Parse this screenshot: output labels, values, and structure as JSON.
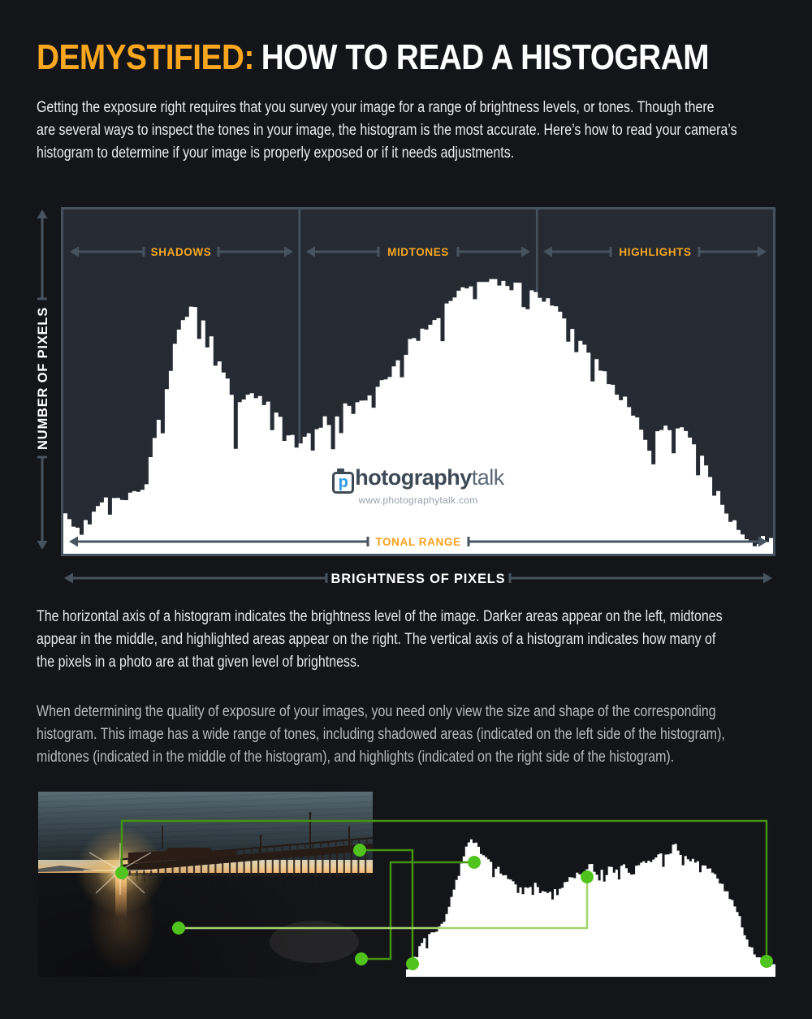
{
  "colors": {
    "page_bg": "#141518",
    "chart_bg": "#262b33",
    "slate": "#47545f",
    "accent_orange": "#f9a71f",
    "histogram_fill": "#ffffff",
    "link_green_dark": "#44940f",
    "link_green_light": "#a5d36b",
    "dot_green": "#50c41d"
  },
  "header": {
    "title_highlight": "DEMYSTIFIED:",
    "title_rest": "HOW TO READ A HISTOGRAM"
  },
  "intro": {
    "lines": [
      "Getting the exposure right requires that you survey your image for a range of brightness levels, or tones. Though there",
      "are several ways to inspect the tones in your image, the histogram is the most accurate. Here’s how to read your camera’s",
      "histogram to determine if your image is properly exposed or if it needs adjustments."
    ]
  },
  "diagram": {
    "y_axis": "NUMBER OF PIXELS",
    "x_axis": "BRIGHTNESS OF PIXELS",
    "tonal_range": "TONAL RANGE",
    "regions": [
      "SHADOWS",
      "MIDTONES",
      "HIGHLIGHTS"
    ],
    "watermark": {
      "p": "p",
      "brand_bold": "hotography",
      "brand_light": "talk",
      "url": "www.photographytalk.com"
    }
  },
  "paragraphs": {
    "axis": [
      "The horizontal axis of a histogram indicates the brightness level of the image. Darker areas appear on the left, midtones",
      "appear in the middle, and highlighted areas appear on the right. The vertical axis of a histogram indicates how many of",
      "the pixels in a photo are at that given level of brightness."
    ],
    "exposure": [
      "When determining the quality of exposure of your images, you need only view the size and shape of the corresponding",
      "histogram. This image has a wide range of tones, including shadowed areas (indicated on the left side of the histogram),",
      "midtones (indicated in the middle of the histogram), and highlights (indicated on the right side of the histogram)."
    ]
  },
  "chart_data": [
    {
      "id": "main-histogram",
      "type": "area",
      "title": "Conceptual camera histogram",
      "xlabel": "BRIGHTNESS OF PIXELS",
      "ylabel": "NUMBER OF PIXELS",
      "x_range": [
        0,
        1
      ],
      "y_range": [
        0,
        1
      ],
      "grid": false,
      "regions": [
        {
          "label": "SHADOWS",
          "span": [
            0,
            0.333
          ]
        },
        {
          "label": "MIDTONES",
          "span": [
            0.333,
            0.667
          ]
        },
        {
          "label": "HIGHLIGHTS",
          "span": [
            0.667,
            1
          ]
        }
      ],
      "envelope": [
        [
          0,
          0.105
        ],
        [
          0.011,
          0.093
        ],
        [
          0.023,
          0.081
        ],
        [
          0.034,
          0.105
        ],
        [
          0.045,
          0.123
        ],
        [
          0.057,
          0.147
        ],
        [
          0.068,
          0.156
        ],
        [
          0.08,
          0.163
        ],
        [
          0.091,
          0.174
        ],
        [
          0.102,
          0.186
        ],
        [
          0.114,
          0.198
        ],
        [
          0.119,
          0.221
        ],
        [
          0.125,
          0.307
        ],
        [
          0.133,
          0.367
        ],
        [
          0.14,
          0.43
        ],
        [
          0.148,
          0.5
        ],
        [
          0.156,
          0.593
        ],
        [
          0.163,
          0.656
        ],
        [
          0.17,
          0.691
        ],
        [
          0.178,
          0.716
        ],
        [
          0.182,
          0.721
        ],
        [
          0.188,
          0.714
        ],
        [
          0.193,
          0.693
        ],
        [
          0.201,
          0.667
        ],
        [
          0.208,
          0.623
        ],
        [
          0.216,
          0.593
        ],
        [
          0.224,
          0.547
        ],
        [
          0.231,
          0.5
        ],
        [
          0.239,
          0.47
        ],
        [
          0.242,
          0.367
        ],
        [
          0.247,
          0.437
        ],
        [
          0.253,
          0.458
        ],
        [
          0.265,
          0.472
        ],
        [
          0.276,
          0.46
        ],
        [
          0.288,
          0.437
        ],
        [
          0.299,
          0.414
        ],
        [
          0.31,
          0.384
        ],
        [
          0.322,
          0.344
        ],
        [
          0.332,
          0.314
        ],
        [
          0.338,
          0.337
        ],
        [
          0.349,
          0.377
        ],
        [
          0.36,
          0.365
        ],
        [
          0.369,
          0.395
        ],
        [
          0.381,
          0.384
        ],
        [
          0.392,
          0.419
        ],
        [
          0.401,
          0.43
        ],
        [
          0.41,
          0.414
        ],
        [
          0.419,
          0.449
        ],
        [
          0.428,
          0.465
        ],
        [
          0.44,
          0.493
        ],
        [
          0.451,
          0.516
        ],
        [
          0.463,
          0.54
        ],
        [
          0.472,
          0.558
        ],
        [
          0.481,
          0.593
        ],
        [
          0.492,
          0.623
        ],
        [
          0.503,
          0.647
        ],
        [
          0.517,
          0.67
        ],
        [
          0.531,
          0.686
        ],
        [
          0.542,
          0.726
        ],
        [
          0.553,
          0.749
        ],
        [
          0.565,
          0.779
        ],
        [
          0.576,
          0.795
        ],
        [
          0.588,
          0.8
        ],
        [
          0.599,
          0.805
        ],
        [
          0.61,
          0.8
        ],
        [
          0.622,
          0.795
        ],
        [
          0.631,
          0.779
        ],
        [
          0.642,
          0.791
        ],
        [
          0.653,
          0.784
        ],
        [
          0.665,
          0.763
        ],
        [
          0.676,
          0.749
        ],
        [
          0.688,
          0.726
        ],
        [
          0.699,
          0.702
        ],
        [
          0.71,
          0.681
        ],
        [
          0.722,
          0.644
        ],
        [
          0.733,
          0.609
        ],
        [
          0.744,
          0.577
        ],
        [
          0.756,
          0.551
        ],
        [
          0.767,
          0.516
        ],
        [
          0.778,
          0.481
        ],
        [
          0.79,
          0.449
        ],
        [
          0.801,
          0.414
        ],
        [
          0.813,
          0.367
        ],
        [
          0.82,
          0.321
        ],
        [
          0.824,
          0.307
        ],
        [
          0.832,
          0.337
        ],
        [
          0.839,
          0.36
        ],
        [
          0.847,
          0.372
        ],
        [
          0.855,
          0.379
        ],
        [
          0.861,
          0.372
        ],
        [
          0.869,
          0.36
        ],
        [
          0.877,
          0.349
        ],
        [
          0.884,
          0.33
        ],
        [
          0.892,
          0.307
        ],
        [
          0.9,
          0.274
        ],
        [
          0.907,
          0.237
        ],
        [
          0.915,
          0.193
        ],
        [
          0.923,
          0.167
        ],
        [
          0.93,
          0.135
        ],
        [
          0.938,
          0.112
        ],
        [
          0.945,
          0.086
        ],
        [
          0.952,
          0.065
        ],
        [
          0.964,
          0.051
        ],
        [
          0.975,
          0.042
        ],
        [
          0.986,
          0.04
        ],
        [
          1,
          0.04
        ]
      ]
    },
    {
      "id": "example-photo-histogram",
      "type": "area",
      "title": "Histogram of example pier photo",
      "x_range": [
        0,
        1
      ],
      "y_range": [
        0,
        1
      ],
      "grid": false,
      "envelope": [
        [
          0,
          0.046
        ],
        [
          0.018,
          0.12
        ],
        [
          0.037,
          0.206
        ],
        [
          0.059,
          0.286
        ],
        [
          0.073,
          0.32
        ],
        [
          0.092,
          0.36
        ],
        [
          0.103,
          0.4
        ],
        [
          0.114,
          0.491
        ],
        [
          0.125,
          0.571
        ],
        [
          0.136,
          0.663
        ],
        [
          0.147,
          0.777
        ],
        [
          0.158,
          0.874
        ],
        [
          0.169,
          0.949
        ],
        [
          0.176,
          0.977
        ],
        [
          0.182,
          0.971
        ],
        [
          0.191,
          0.943
        ],
        [
          0.202,
          0.891
        ],
        [
          0.213,
          0.846
        ],
        [
          0.226,
          0.806
        ],
        [
          0.242,
          0.777
        ],
        [
          0.257,
          0.749
        ],
        [
          0.27,
          0.72
        ],
        [
          0.286,
          0.686
        ],
        [
          0.301,
          0.663
        ],
        [
          0.314,
          0.646
        ],
        [
          0.33,
          0.629
        ],
        [
          0.345,
          0.634
        ],
        [
          0.347,
          0.714
        ],
        [
          0.358,
          0.617
        ],
        [
          0.374,
          0.606
        ],
        [
          0.389,
          0.617
        ],
        [
          0.402,
          0.629
        ],
        [
          0.418,
          0.646
        ],
        [
          0.433,
          0.674
        ],
        [
          0.446,
          0.691
        ],
        [
          0.462,
          0.72
        ],
        [
          0.477,
          0.743
        ],
        [
          0.49,
          0.76
        ],
        [
          0.499,
          0.834
        ],
        [
          0.512,
          0.749
        ],
        [
          0.527,
          0.749
        ],
        [
          0.543,
          0.743
        ],
        [
          0.556,
          0.777
        ],
        [
          0.571,
          0.749
        ],
        [
          0.587,
          0.8
        ],
        [
          0.6,
          0.749
        ],
        [
          0.615,
          0.789
        ],
        [
          0.631,
          0.777
        ],
        [
          0.644,
          0.834
        ],
        [
          0.659,
          0.806
        ],
        [
          0.675,
          0.857
        ],
        [
          0.688,
          0.874
        ],
        [
          0.703,
          0.863
        ],
        [
          0.719,
          0.891
        ],
        [
          0.727,
          0.96
        ],
        [
          0.741,
          0.874
        ],
        [
          0.754,
          0.857
        ],
        [
          0.769,
          0.834
        ],
        [
          0.785,
          0.806
        ],
        [
          0.798,
          0.8
        ],
        [
          0.813,
          0.777
        ],
        [
          0.829,
          0.743
        ],
        [
          0.842,
          0.703
        ],
        [
          0.857,
          0.646
        ],
        [
          0.873,
          0.589
        ],
        [
          0.886,
          0.531
        ],
        [
          0.895,
          0.491
        ],
        [
          0.901,
          0.434
        ],
        [
          0.908,
          0.36
        ],
        [
          0.916,
          0.303
        ],
        [
          0.923,
          0.246
        ],
        [
          0.93,
          0.206
        ],
        [
          0.945,
          0.171
        ],
        [
          0.96,
          0.12
        ],
        [
          0.974,
          0.103
        ],
        [
          0.989,
          0.086
        ],
        [
          1,
          0.063
        ]
      ],
      "annotations": {
        "dot_color": "#50c41d",
        "line_dark": "#44940f",
        "line_light": "#a5d36b",
        "links": [
          {
            "name": "sun-to-highlights",
            "shade": "dark",
            "points": [
              [
                150,
                115
              ],
              [
                150,
                51
              ],
              [
                944,
                51
              ],
              [
                944,
                224
              ]
            ]
          },
          {
            "name": "pier-to-shadows",
            "shade": "dark",
            "points": [
              [
                443,
                87
              ],
              [
                508,
                87
              ],
              [
                508,
                227
              ]
            ]
          },
          {
            "name": "sand-to-shadow-peak",
            "shade": "dark",
            "points": [
              [
                445,
                221
              ],
              [
                481,
                221
              ],
              [
                481,
                102
              ],
              [
                584,
                102
              ]
            ]
          },
          {
            "name": "water-to-midtones",
            "shade": "light",
            "points": [
              [
                220,
                183
              ],
              [
                723,
                183
              ],
              [
                723,
                120
              ]
            ]
          }
        ],
        "dots": [
          [
            150,
            115
          ],
          [
            443,
            87
          ],
          [
            220,
            183
          ],
          [
            445,
            221
          ],
          [
            584,
            102
          ],
          [
            723,
            120
          ],
          [
            508,
            227
          ],
          [
            944,
            224
          ]
        ]
      }
    }
  ]
}
